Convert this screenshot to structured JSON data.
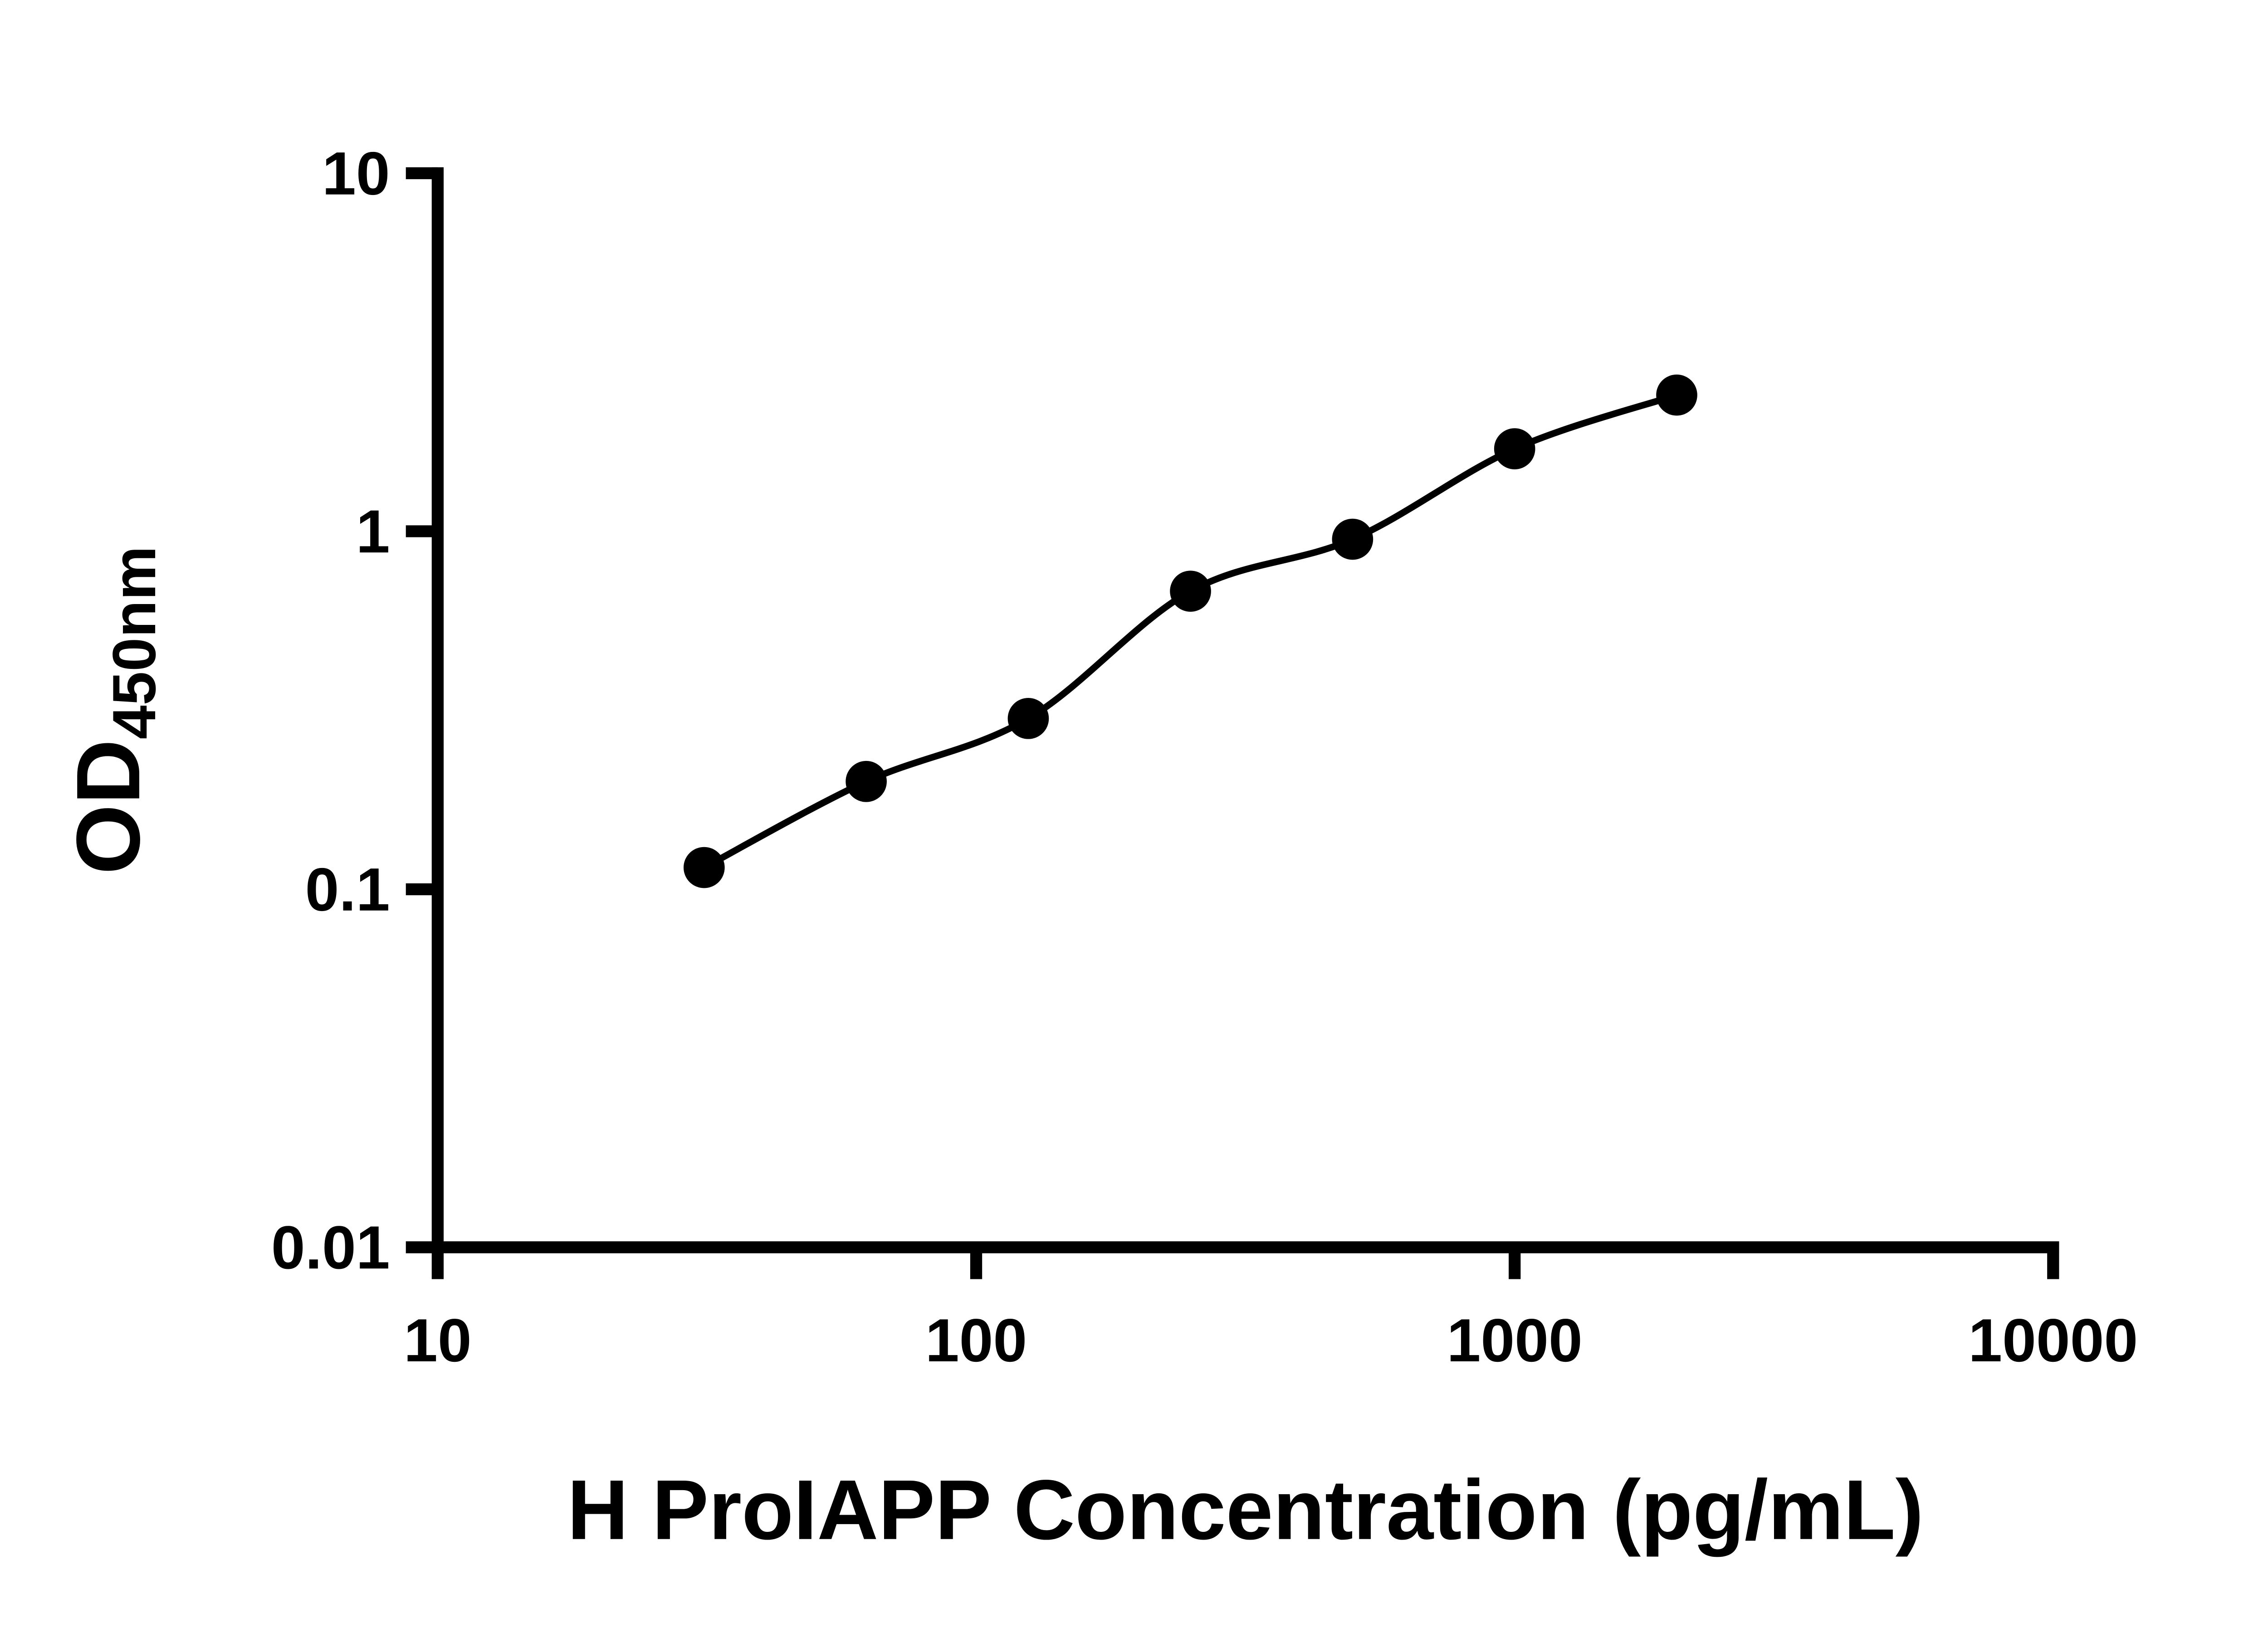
{
  "chart": {
    "xlabel": "H ProIAPP Concentration (pg/mL)",
    "ylabel_main": "OD",
    "ylabel_sub": "450nm"
  },
  "chart_data": {
    "type": "scatter",
    "title": "",
    "xlabel": "H ProIAPP Concentration (pg/mL)",
    "ylabel": "OD450nm",
    "x_scale": "log",
    "y_scale": "log",
    "xlim": [
      10,
      10000
    ],
    "ylim": [
      0.01,
      10
    ],
    "x_ticks": [
      10,
      100,
      1000,
      10000
    ],
    "y_ticks": [
      0.01,
      0.1,
      1,
      10
    ],
    "x_tick_labels": [
      "10",
      "100",
      "1000",
      "10000"
    ],
    "y_tick_labels": [
      "0.01",
      "0.1",
      "1",
      "10"
    ],
    "x": [
      31.25,
      62.5,
      125,
      250,
      500,
      1000,
      2000
    ],
    "y": [
      0.115,
      0.2,
      0.3,
      0.68,
      0.95,
      1.7,
      2.4
    ],
    "fit_curve": true,
    "grid": false,
    "legend": false,
    "marker_color": "#000000",
    "line_color": "#000000",
    "axis_color": "#000000"
  }
}
